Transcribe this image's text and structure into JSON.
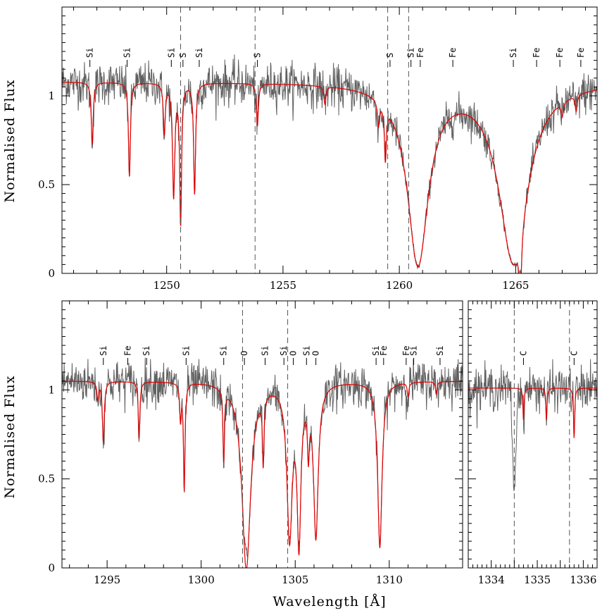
{
  "colors": {
    "observed": "#606060",
    "model": "#e00000",
    "axes": "#000000",
    "marker": "#000000"
  },
  "chart_data": [
    {
      "type": "line",
      "panel": "top",
      "xlim": [
        1245.5,
        1268.5
      ],
      "ylim": [
        0,
        1.5
      ],
      "xticks": [
        1250,
        1255,
        1260,
        1265
      ],
      "xtick_labels": [
        "1250",
        "1255",
        "1260",
        "1265"
      ],
      "yticks": [
        0,
        0.5,
        1
      ],
      "ytick_labels": [
        "0",
        "0.5",
        "1"
      ],
      "ylabel": "Normalised Flux",
      "xlabel": "",
      "continuum": 1.08,
      "vlines": [
        1250.6,
        1253.8,
        1259.5,
        1260.4
      ],
      "absorption_lines": [
        {
          "x": 1246.8,
          "depth": 0.35,
          "width": 0.05
        },
        {
          "x": 1248.4,
          "depth": 0.53,
          "width": 0.05
        },
        {
          "x": 1249.9,
          "depth": 0.28,
          "width": 0.05
        },
        {
          "x": 1250.3,
          "depth": 0.63,
          "width": 0.06
        },
        {
          "x": 1250.6,
          "depth": 0.78,
          "width": 0.05
        },
        {
          "x": 1251.2,
          "depth": 0.62,
          "width": 0.05
        },
        {
          "x": 1253.9,
          "depth": 0.24,
          "width": 0.05
        },
        {
          "x": 1256.8,
          "depth": 0.1,
          "width": 0.05
        },
        {
          "x": 1259.1,
          "depth": 0.14,
          "width": 0.05
        },
        {
          "x": 1259.4,
          "depth": 0.3,
          "width": 0.05
        },
        {
          "x": 1260.8,
          "depth": 1.01,
          "width": 0.55
        },
        {
          "x": 1264.9,
          "depth": 1.0,
          "width": 0.75
        },
        {
          "x": 1265.2,
          "depth": 0.35,
          "width": 0.06
        },
        {
          "x": 1267.0,
          "depth": 0.08,
          "width": 0.05
        },
        {
          "x": 1267.6,
          "depth": 0.09,
          "width": 0.05
        }
      ],
      "markers": [
        {
          "x": 1246.7,
          "label": "Si"
        },
        {
          "x": 1248.3,
          "label": "Si"
        },
        {
          "x": 1250.2,
          "label": "Si"
        },
        {
          "x": 1250.7,
          "label": "S"
        },
        {
          "x": 1251.4,
          "label": "Si"
        },
        {
          "x": 1253.9,
          "label": "S"
        },
        {
          "x": 1259.6,
          "label": "S"
        },
        {
          "x": 1260.5,
          "label": "Si"
        },
        {
          "x": 1260.9,
          "label": "Fe"
        },
        {
          "x": 1262.3,
          "label": "Fe"
        },
        {
          "x": 1264.9,
          "label": "Si"
        },
        {
          "x": 1265.9,
          "label": "Fe"
        },
        {
          "x": 1266.9,
          "label": "Fe"
        },
        {
          "x": 1267.8,
          "label": "Fe"
        }
      ]
    },
    {
      "type": "line",
      "panel": "bottom-left",
      "xlim": [
        1292.6,
        1313.9
      ],
      "ylim": [
        0,
        1.5
      ],
      "xticks": [
        1295,
        1300,
        1305,
        1310
      ],
      "xtick_labels": [
        "1295",
        "1300",
        "1305",
        "1310"
      ],
      "yticks": [
        0,
        0.5,
        1
      ],
      "ytick_labels": [
        "0",
        "0.5",
        "1"
      ],
      "ylabel": "Normalised Flux",
      "xlabel": "",
      "continuum": 1.05,
      "vlines": [
        1302.2,
        1304.6
      ],
      "absorption_lines": [
        {
          "x": 1294.5,
          "depth": 0.1,
          "width": 0.05
        },
        {
          "x": 1294.8,
          "depth": 0.34,
          "width": 0.06
        },
        {
          "x": 1296.7,
          "depth": 0.32,
          "width": 0.05
        },
        {
          "x": 1298.9,
          "depth": 0.2,
          "width": 0.05
        },
        {
          "x": 1299.1,
          "depth": 0.6,
          "width": 0.05
        },
        {
          "x": 1301.2,
          "depth": 0.4,
          "width": 0.05
        },
        {
          "x": 1302.4,
          "depth": 1.05,
          "width": 0.28
        },
        {
          "x": 1303.3,
          "depth": 0.38,
          "width": 0.05
        },
        {
          "x": 1304.7,
          "depth": 0.85,
          "width": 0.17
        },
        {
          "x": 1305.2,
          "depth": 0.85,
          "width": 0.12
        },
        {
          "x": 1305.7,
          "depth": 0.3,
          "width": 0.06
        },
        {
          "x": 1306.1,
          "depth": 0.85,
          "width": 0.15
        },
        {
          "x": 1309.5,
          "depth": 0.93,
          "width": 0.14
        },
        {
          "x": 1311.0,
          "depth": 0.08,
          "width": 0.05
        },
        {
          "x": 1312.5,
          "depth": 0.07,
          "width": 0.05
        }
      ],
      "emission_bumps": [
        {
          "x": 1302.1,
          "height": 0.22,
          "width": 0.35
        },
        {
          "x": 1304.9,
          "height": 0.2,
          "width": 0.45
        },
        {
          "x": 1305.9,
          "height": 0.14,
          "width": 0.45
        }
      ],
      "markers": [
        {
          "x": 1294.8,
          "label": "Si"
        },
        {
          "x": 1296.1,
          "label": "Fe"
        },
        {
          "x": 1297.1,
          "label": "Si"
        },
        {
          "x": 1299.2,
          "label": "Si"
        },
        {
          "x": 1301.2,
          "label": "Si"
        },
        {
          "x": 1302.3,
          "label": "O"
        },
        {
          "x": 1303.4,
          "label": "Si"
        },
        {
          "x": 1304.4,
          "label": "Si"
        },
        {
          "x": 1304.9,
          "label": "O"
        },
        {
          "x": 1305.6,
          "label": "Si"
        },
        {
          "x": 1306.1,
          "label": "O"
        },
        {
          "x": 1309.3,
          "label": "Si"
        },
        {
          "x": 1309.7,
          "label": "Fe"
        },
        {
          "x": 1310.9,
          "label": "Fe"
        },
        {
          "x": 1311.3,
          "label": "Si"
        },
        {
          "x": 1312.7,
          "label": "Si"
        }
      ]
    },
    {
      "type": "line",
      "panel": "bottom-right",
      "xlim": [
        1333.5,
        1336.3
      ],
      "ylim": [
        0,
        1.5
      ],
      "xticks": [
        1334,
        1334.5,
        1335,
        1335.5,
        1336
      ],
      "xtick_labels": [
        "1334",
        "",
        "1335",
        "",
        "1336"
      ],
      "yticks": [
        0,
        0.5,
        1
      ],
      "ytick_labels": [],
      "ylabel": "",
      "xlabel": "Wavelength [Å]",
      "continuum": 1.01,
      "vlines": [
        1334.5,
        1335.7
      ],
      "absorption_lines": [
        {
          "x": 1334.7,
          "depth": 0.18,
          "width": 0.015
        },
        {
          "x": 1335.2,
          "depth": 0.18,
          "width": 0.015
        },
        {
          "x": 1335.8,
          "depth": 0.28,
          "width": 0.015
        }
      ],
      "observed_dips": [
        {
          "x": 1334.5,
          "depth": 0.58,
          "width": 0.05
        }
      ],
      "markers": [
        {
          "x": 1334.7,
          "label": "C"
        },
        {
          "x": 1335.8,
          "label": "C"
        }
      ]
    }
  ]
}
